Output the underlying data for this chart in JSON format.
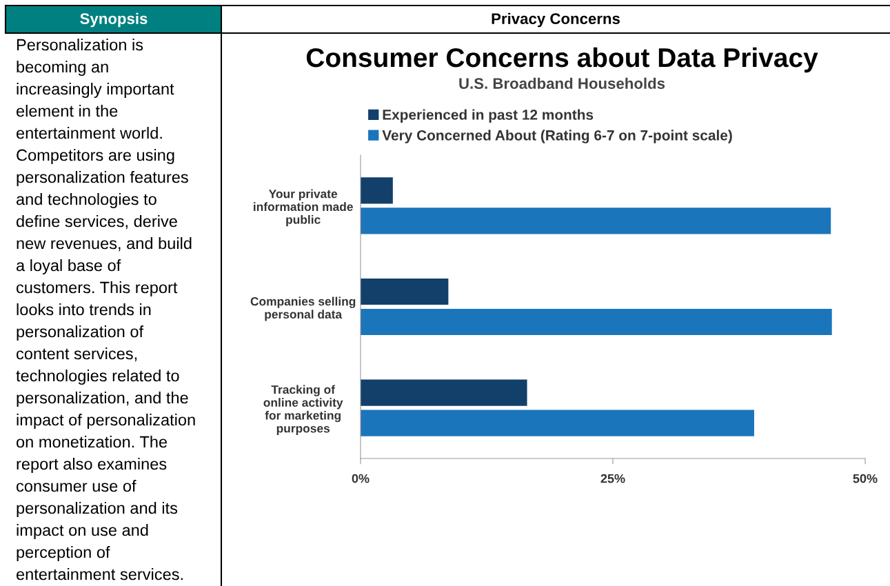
{
  "chart_data": [
    {
      "type": "other",
      "title": "Synopsis",
      "annotations": [
        "Personalization is",
        "becoming an",
        "increasingly important",
        "element in the",
        "entertainment world.",
        "Competitors are using",
        "personalization features",
        "and technologies to",
        "define services, derive",
        "new revenues, and build",
        "a loyal base of",
        "customers. This report",
        "looks into trends in",
        "personalization of",
        "content services,",
        "technologies related to",
        "personalization, and the",
        "impact of personalization",
        "on monetization. The",
        "report also examines",
        "consumer use of",
        "personalization and its",
        "impact on use and",
        "perception of",
        "entertainment services."
      ]
    },
    {
      "type": "bar",
      "orientation": "horizontal",
      "title": "Consumer Concerns about Data Privacy",
      "subtitle": "U.S. Broadband Households",
      "annotations": [
        "Privacy Concerns"
      ],
      "categories": [
        "Your private\ninformation made\npublic",
        "Companies selling\npersonal data",
        "Tracking of\nonline activity\nfor marketing\npurposes"
      ],
      "series": [
        {
          "name": "Experienced in past 12 months",
          "color": "#12406b",
          "values": [
            3.2,
            8.7,
            16.5
          ]
        },
        {
          "name": "Very Concerned About (Rating 6-7 on 7-point scale)",
          "color": "#1b75bb",
          "values": [
            46.6,
            46.7,
            39.0
          ]
        }
      ],
      "xlim": [
        0,
        50
      ],
      "xticks": [
        {
          "value": 0,
          "label": "0%"
        },
        {
          "value": 25,
          "label": "25%"
        },
        {
          "value": 50,
          "label": "50%"
        }
      ],
      "legend": "top left",
      "grid": false
    }
  ]
}
